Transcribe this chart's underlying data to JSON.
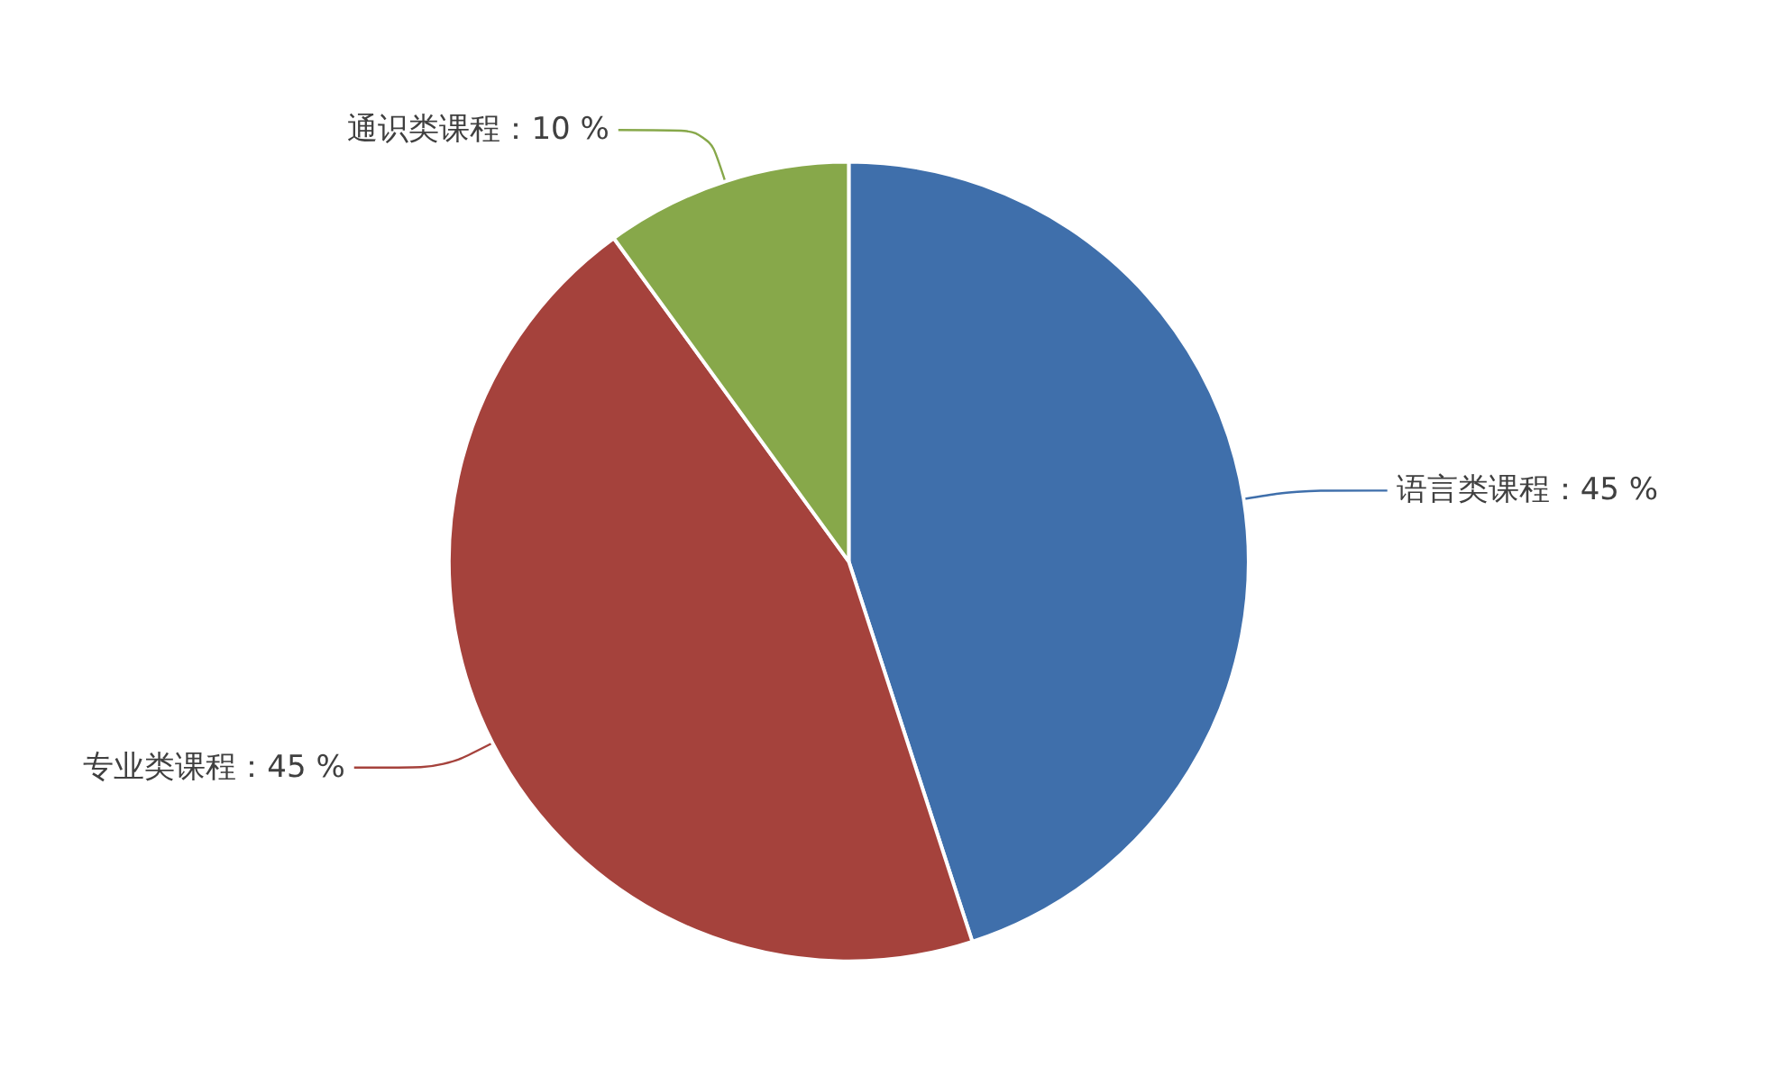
{
  "chart_data": {
    "type": "pie",
    "categories": [
      "语言类课程",
      "专业类课程",
      "通识类课程"
    ],
    "values": [
      45,
      45,
      10
    ],
    "colors": [
      "#3f6fab",
      "#a5423c",
      "#87a84a"
    ],
    "value_labels": [
      "45 %",
      "45 %",
      "10 %"
    ]
  }
}
